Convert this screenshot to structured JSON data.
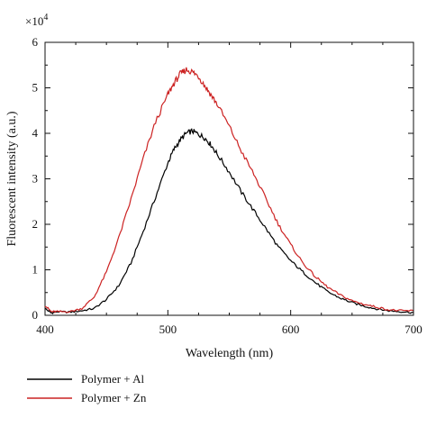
{
  "chart_data": {
    "type": "line",
    "xlabel": "Wavelength (nm)",
    "ylabel": "Fluorescent intensity (a.u.)",
    "y_multiplier": "×10",
    "y_multiplier_exp": "4",
    "xlim": [
      400,
      700
    ],
    "ylim": [
      0,
      6
    ],
    "x_ticks": [
      "400",
      "500",
      "600",
      "700"
    ],
    "y_ticks": [
      "0",
      "1",
      "2",
      "3",
      "4",
      "5",
      "6"
    ],
    "grid": false,
    "legend_position": "bottom-left",
    "series": [
      {
        "name": "Polymer + Al",
        "color": "#000000",
        "x": [
          400,
          405,
          410,
          420,
          430,
          440,
          450,
          460,
          470,
          480,
          490,
          500,
          505,
          510,
          515,
          520,
          525,
          530,
          535,
          540,
          550,
          560,
          570,
          580,
          590,
          600,
          610,
          620,
          630,
          640,
          650,
          660,
          670,
          680,
          690,
          700
        ],
        "y": [
          0.15,
          0.05,
          0.08,
          0.07,
          0.1,
          0.15,
          0.35,
          0.65,
          1.15,
          1.85,
          2.6,
          3.35,
          3.65,
          3.85,
          4.0,
          4.05,
          3.98,
          3.9,
          3.75,
          3.55,
          3.15,
          2.7,
          2.3,
          1.9,
          1.5,
          1.2,
          0.95,
          0.72,
          0.52,
          0.38,
          0.28,
          0.2,
          0.14,
          0.1,
          0.08,
          0.06
        ]
      },
      {
        "name": "Polymer + Zn",
        "color": "#cc2222",
        "x": [
          400,
          405,
          410,
          420,
          430,
          440,
          450,
          460,
          470,
          480,
          490,
          500,
          505,
          510,
          515,
          520,
          525,
          530,
          535,
          540,
          550,
          560,
          570,
          580,
          590,
          600,
          610,
          620,
          630,
          640,
          650,
          660,
          670,
          680,
          690,
          700
        ],
        "y": [
          0.22,
          0.08,
          0.08,
          0.08,
          0.15,
          0.4,
          0.95,
          1.7,
          2.55,
          3.45,
          4.25,
          4.85,
          5.1,
          5.3,
          5.4,
          5.35,
          5.25,
          5.05,
          4.85,
          4.65,
          4.15,
          3.6,
          3.1,
          2.55,
          2.0,
          1.55,
          1.15,
          0.85,
          0.62,
          0.45,
          0.32,
          0.24,
          0.18,
          0.12,
          0.1,
          0.1
        ]
      }
    ]
  }
}
